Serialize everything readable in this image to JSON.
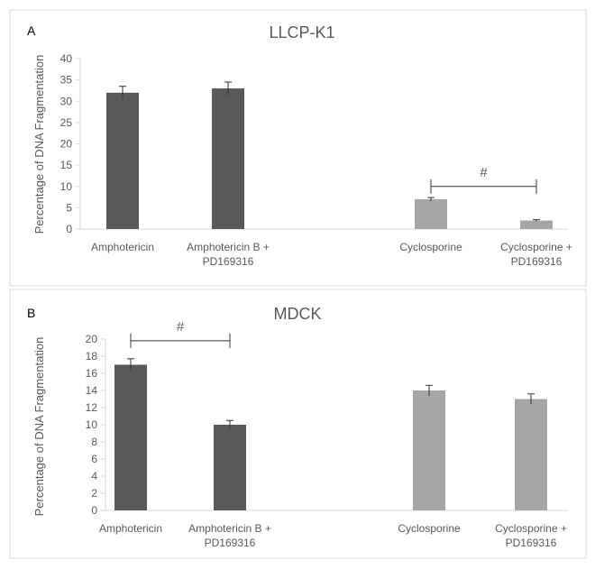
{
  "colors": {
    "dark_bar": "#595959",
    "light_bar": "#a6a6a6",
    "axis": "#d9d9d9",
    "text": "#595959",
    "panel_border": "#d9d9d9",
    "whisker": "#333333"
  },
  "chart_data": [
    {
      "type": "bar",
      "panel_label": "A",
      "title": "LLCP-K1",
      "ylabel": "Percentage of DNA Fragmentation",
      "xlabel": "",
      "ylim": [
        0,
        40
      ],
      "yticks": [
        0,
        5,
        10,
        15,
        20,
        25,
        30,
        35,
        40
      ],
      "grid": false,
      "categories": [
        [
          "Amphotericin"
        ],
        [
          "Amphotericin B +",
          "PD169316"
        ],
        [
          "Cyclosporine"
        ],
        [
          "Cyclosporine +",
          "PD169316"
        ]
      ],
      "values": [
        32,
        33,
        7,
        2
      ],
      "errors": [
        1.5,
        1.5,
        0.4,
        0.2
      ],
      "bar_colors": [
        "dark",
        "dark",
        "light",
        "light"
      ],
      "annotation": {
        "text": "#",
        "from_category": 2,
        "to_category": 3,
        "level": 10
      }
    },
    {
      "type": "bar",
      "panel_label": "B",
      "title": "MDCK",
      "ylabel": "Percentage of DNA Fragmentation",
      "xlabel": "",
      "ylim": [
        0,
        20
      ],
      "yticks": [
        0,
        2,
        4,
        6,
        8,
        10,
        12,
        14,
        16,
        18,
        20
      ],
      "grid": false,
      "categories": [
        [
          "Amphotericin"
        ],
        [
          "Amphotericin B +",
          "PD169316"
        ],
        [
          "Cyclosporine"
        ],
        [
          "Cyclosporine +",
          "PD169316"
        ]
      ],
      "values": [
        17,
        10,
        14,
        13
      ],
      "errors": [
        0.7,
        0.5,
        0.6,
        0.6
      ],
      "bar_colors": [
        "dark",
        "dark",
        "light",
        "light"
      ],
      "annotation": {
        "text": "#",
        "from_category": 0,
        "to_category": 1,
        "level": 19.8
      }
    }
  ]
}
